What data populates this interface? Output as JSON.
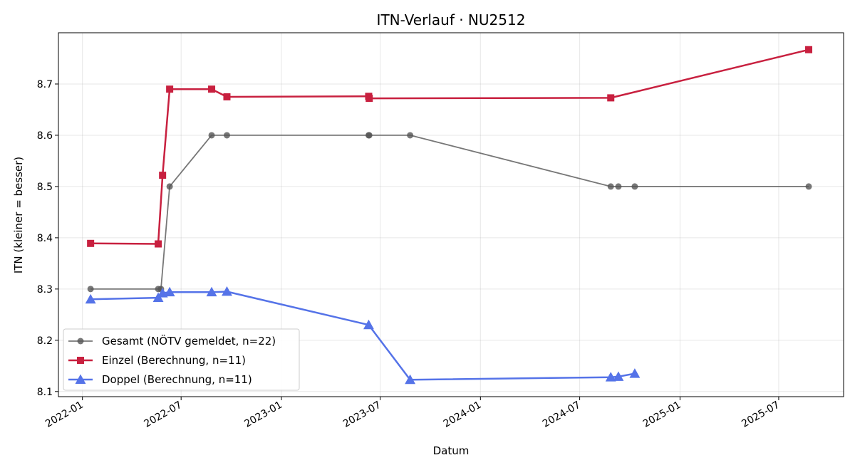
{
  "chart_data": {
    "type": "line",
    "title": "ITN-Verlauf · NU2512",
    "xlabel": "Datum",
    "ylabel": "ITN  (kleiner = besser)",
    "xlim": [
      "2021-11-18",
      "2025-10-28"
    ],
    "ylim": [
      8.09,
      8.8
    ],
    "grid": true,
    "legend_position": "lower-left",
    "x_ticks": [
      "2022-01",
      "2022-07",
      "2023-01",
      "2023-07",
      "2024-01",
      "2024-07",
      "2025-01",
      "2025-07"
    ],
    "y_ticks": [
      8.1,
      8.2,
      8.3,
      8.4,
      8.5,
      8.6,
      8.7
    ],
    "series": [
      {
        "name": "Gesamt (NÖTV gemeldet, n=22)",
        "color": "#555555",
        "marker": "circle",
        "x": [
          "2022-01-16",
          "2022-05-20",
          "2022-05-25",
          "2022-06-10",
          "2022-08-26",
          "2022-09-23",
          "2023-06-10",
          "2023-06-11",
          "2023-08-25",
          "2024-08-27",
          "2024-09-10",
          "2024-10-10",
          "2025-08-25"
        ],
        "values": [
          8.3,
          8.3,
          8.3,
          8.5,
          8.6,
          8.6,
          8.6,
          8.6,
          8.6,
          8.5,
          8.5,
          8.5,
          8.5
        ]
      },
      {
        "name": "Einzel (Berechnung, n=11)",
        "color": "#c8203f",
        "marker": "square",
        "x": [
          "2022-01-16",
          "2022-05-20",
          "2022-05-28",
          "2022-06-10",
          "2022-08-26",
          "2022-09-23",
          "2023-06-10",
          "2023-06-11",
          "2024-08-27",
          "2025-08-25"
        ],
        "values": [
          8.389,
          8.388,
          8.522,
          8.69,
          8.69,
          8.675,
          8.676,
          8.672,
          8.673,
          8.767
        ]
      },
      {
        "name": "Doppel (Berechnung, n=11)",
        "color": "#5573e8",
        "marker": "triangle",
        "x": [
          "2022-01-16",
          "2022-05-20",
          "2022-05-28",
          "2022-06-10",
          "2022-08-26",
          "2022-09-23",
          "2023-06-10",
          "2023-08-25",
          "2024-08-27",
          "2024-09-10",
          "2024-10-10"
        ],
        "values": [
          8.28,
          8.283,
          8.292,
          8.294,
          8.294,
          8.295,
          8.23,
          8.123,
          8.128,
          8.129,
          8.135
        ]
      }
    ]
  }
}
